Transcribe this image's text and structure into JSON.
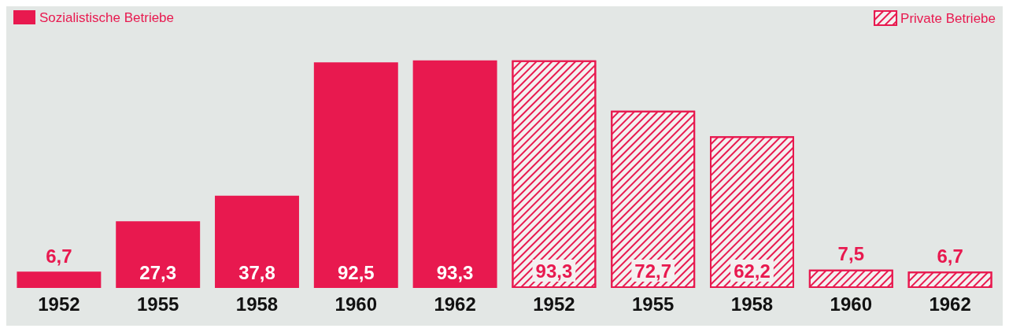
{
  "chart_data": {
    "type": "bar",
    "categories": [
      "1952",
      "1955",
      "1958",
      "1960",
      "1962",
      "1952",
      "1955",
      "1958",
      "1960",
      "1962"
    ],
    "series": [
      {
        "name": "Sozialistische Betriebe",
        "color": "#e8194f",
        "values": [
          6.7,
          27.3,
          37.8,
          92.5,
          93.3,
          null,
          null,
          null,
          null,
          null
        ],
        "value_labels": [
          "6,7",
          "27,3",
          "37,8",
          "92,5",
          "93,3",
          null,
          null,
          null,
          null,
          null
        ]
      },
      {
        "name": "Private Betriebe",
        "color": "#e8194f",
        "values": [
          null,
          null,
          null,
          null,
          null,
          93.3,
          72.7,
          62.2,
          7.5,
          6.7
        ],
        "value_labels": [
          null,
          null,
          null,
          null,
          null,
          "93,3",
          "72,7",
          "62,2",
          "7,5",
          "6,7"
        ]
      }
    ],
    "legend": "top"
  }
}
